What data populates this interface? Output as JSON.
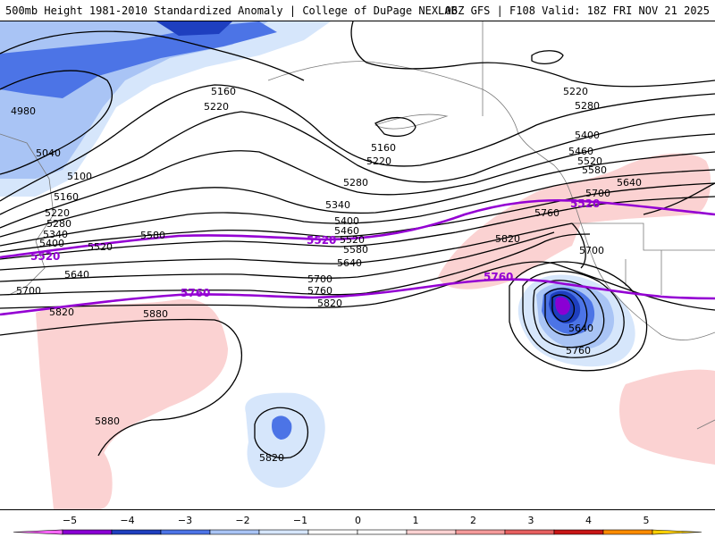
{
  "header": {
    "left": "500mb Height 1981-2010 Standardized Anomaly | College of DuPage NEXLAB",
    "right": "06Z GFS | F108 Valid: 18Z FRI NOV 21 2025"
  },
  "contour_labels": {
    "l4980": "4980",
    "l5040": "5040",
    "l5100": "5100",
    "l5160a": "5160",
    "l5220a": "5220",
    "l5280a": "5280",
    "l5340a": "5340",
    "l5400a": "5400",
    "l5520a": "5520",
    "l5580a": "5580",
    "l5640a": "5640",
    "l5700a": "5700",
    "l5820a": "5820",
    "l5880a": "5880",
    "l5880b": "5880",
    "l5160b": "5160",
    "l5220b": "5220",
    "l5160c": "5160",
    "l5220c": "5220",
    "l5280b": "5280",
    "l5340b": "5340",
    "l5400b": "5400",
    "l5460b": "5460",
    "l5520b": "5520",
    "l5580b": "5580",
    "l5640b": "5640",
    "l5700b": "5700",
    "l5760b": "5760",
    "l5820b": "5820",
    "l5220d": "5220",
    "l5280d": "5280",
    "l5400d": "5400",
    "l5460d": "5460",
    "l5520d": "5520",
    "l5580d": "5580",
    "l5640d": "5640",
    "l5700d": "5700",
    "l5760d": "5760",
    "l5820d": "5820",
    "l5700e": "5700",
    "l5640e": "5640",
    "l5760e": "5760",
    "l5820f": "5820"
  },
  "highlight_labels": {
    "p5520w": "5520",
    "p5520c": "5520",
    "p5520e": "5520",
    "p5760w": "5760",
    "p5760e": "5760"
  },
  "legend": {
    "ticks": [
      "−5",
      "−4",
      "−3",
      "−2",
      "−1",
      "0",
      "1",
      "2",
      "3",
      "4",
      "5"
    ],
    "colors": [
      "#ff66ff",
      "#8a00d4",
      "#1e3fbf",
      "#4c74e6",
      "#a9c4f5",
      "#d6e6fb",
      "#ffffff",
      "#ffffff",
      "#fbd2d2",
      "#f49a9a",
      "#e65f5f",
      "#c81616",
      "#ff8c00",
      "#ffd000"
    ]
  }
}
